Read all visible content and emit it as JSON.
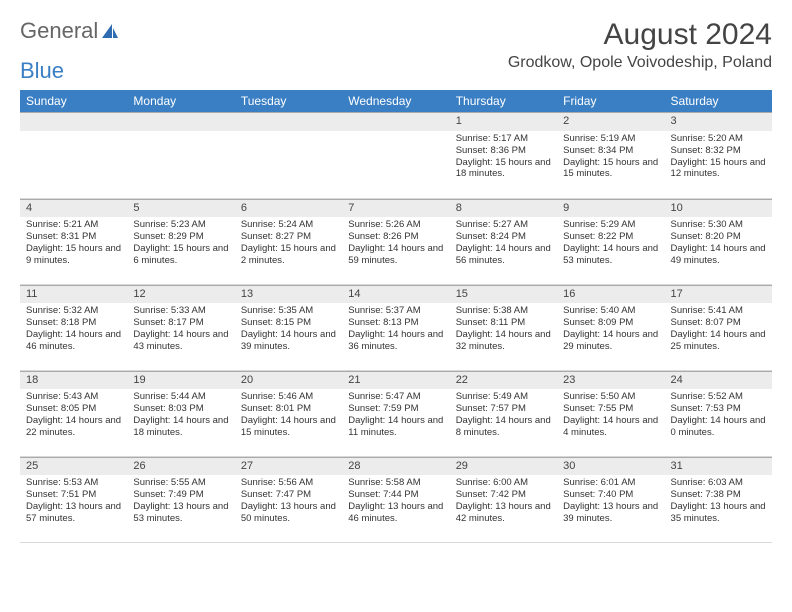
{
  "brand": {
    "part1": "General",
    "part2": "Blue"
  },
  "title": "August 2024",
  "location": "Grodkow, Opole Voivodeship, Poland",
  "colors": {
    "header_bg": "#3a7fc4",
    "header_fg": "#ffffff",
    "daynum_bg": "#ececec",
    "text": "#333333"
  },
  "weekdays": [
    "Sunday",
    "Monday",
    "Tuesday",
    "Wednesday",
    "Thursday",
    "Friday",
    "Saturday"
  ],
  "weeks": [
    [
      {
        "day": "",
        "sunrise": "",
        "sunset": "",
        "daylight": ""
      },
      {
        "day": "",
        "sunrise": "",
        "sunset": "",
        "daylight": ""
      },
      {
        "day": "",
        "sunrise": "",
        "sunset": "",
        "daylight": ""
      },
      {
        "day": "",
        "sunrise": "",
        "sunset": "",
        "daylight": ""
      },
      {
        "day": "1",
        "sunrise": "Sunrise: 5:17 AM",
        "sunset": "Sunset: 8:36 PM",
        "daylight": "Daylight: 15 hours and 18 minutes."
      },
      {
        "day": "2",
        "sunrise": "Sunrise: 5:19 AM",
        "sunset": "Sunset: 8:34 PM",
        "daylight": "Daylight: 15 hours and 15 minutes."
      },
      {
        "day": "3",
        "sunrise": "Sunrise: 5:20 AM",
        "sunset": "Sunset: 8:32 PM",
        "daylight": "Daylight: 15 hours and 12 minutes."
      }
    ],
    [
      {
        "day": "4",
        "sunrise": "Sunrise: 5:21 AM",
        "sunset": "Sunset: 8:31 PM",
        "daylight": "Daylight: 15 hours and 9 minutes."
      },
      {
        "day": "5",
        "sunrise": "Sunrise: 5:23 AM",
        "sunset": "Sunset: 8:29 PM",
        "daylight": "Daylight: 15 hours and 6 minutes."
      },
      {
        "day": "6",
        "sunrise": "Sunrise: 5:24 AM",
        "sunset": "Sunset: 8:27 PM",
        "daylight": "Daylight: 15 hours and 2 minutes."
      },
      {
        "day": "7",
        "sunrise": "Sunrise: 5:26 AM",
        "sunset": "Sunset: 8:26 PM",
        "daylight": "Daylight: 14 hours and 59 minutes."
      },
      {
        "day": "8",
        "sunrise": "Sunrise: 5:27 AM",
        "sunset": "Sunset: 8:24 PM",
        "daylight": "Daylight: 14 hours and 56 minutes."
      },
      {
        "day": "9",
        "sunrise": "Sunrise: 5:29 AM",
        "sunset": "Sunset: 8:22 PM",
        "daylight": "Daylight: 14 hours and 53 minutes."
      },
      {
        "day": "10",
        "sunrise": "Sunrise: 5:30 AM",
        "sunset": "Sunset: 8:20 PM",
        "daylight": "Daylight: 14 hours and 49 minutes."
      }
    ],
    [
      {
        "day": "11",
        "sunrise": "Sunrise: 5:32 AM",
        "sunset": "Sunset: 8:18 PM",
        "daylight": "Daylight: 14 hours and 46 minutes."
      },
      {
        "day": "12",
        "sunrise": "Sunrise: 5:33 AM",
        "sunset": "Sunset: 8:17 PM",
        "daylight": "Daylight: 14 hours and 43 minutes."
      },
      {
        "day": "13",
        "sunrise": "Sunrise: 5:35 AM",
        "sunset": "Sunset: 8:15 PM",
        "daylight": "Daylight: 14 hours and 39 minutes."
      },
      {
        "day": "14",
        "sunrise": "Sunrise: 5:37 AM",
        "sunset": "Sunset: 8:13 PM",
        "daylight": "Daylight: 14 hours and 36 minutes."
      },
      {
        "day": "15",
        "sunrise": "Sunrise: 5:38 AM",
        "sunset": "Sunset: 8:11 PM",
        "daylight": "Daylight: 14 hours and 32 minutes."
      },
      {
        "day": "16",
        "sunrise": "Sunrise: 5:40 AM",
        "sunset": "Sunset: 8:09 PM",
        "daylight": "Daylight: 14 hours and 29 minutes."
      },
      {
        "day": "17",
        "sunrise": "Sunrise: 5:41 AM",
        "sunset": "Sunset: 8:07 PM",
        "daylight": "Daylight: 14 hours and 25 minutes."
      }
    ],
    [
      {
        "day": "18",
        "sunrise": "Sunrise: 5:43 AM",
        "sunset": "Sunset: 8:05 PM",
        "daylight": "Daylight: 14 hours and 22 minutes."
      },
      {
        "day": "19",
        "sunrise": "Sunrise: 5:44 AM",
        "sunset": "Sunset: 8:03 PM",
        "daylight": "Daylight: 14 hours and 18 minutes."
      },
      {
        "day": "20",
        "sunrise": "Sunrise: 5:46 AM",
        "sunset": "Sunset: 8:01 PM",
        "daylight": "Daylight: 14 hours and 15 minutes."
      },
      {
        "day": "21",
        "sunrise": "Sunrise: 5:47 AM",
        "sunset": "Sunset: 7:59 PM",
        "daylight": "Daylight: 14 hours and 11 minutes."
      },
      {
        "day": "22",
        "sunrise": "Sunrise: 5:49 AM",
        "sunset": "Sunset: 7:57 PM",
        "daylight": "Daylight: 14 hours and 8 minutes."
      },
      {
        "day": "23",
        "sunrise": "Sunrise: 5:50 AM",
        "sunset": "Sunset: 7:55 PM",
        "daylight": "Daylight: 14 hours and 4 minutes."
      },
      {
        "day": "24",
        "sunrise": "Sunrise: 5:52 AM",
        "sunset": "Sunset: 7:53 PM",
        "daylight": "Daylight: 14 hours and 0 minutes."
      }
    ],
    [
      {
        "day": "25",
        "sunrise": "Sunrise: 5:53 AM",
        "sunset": "Sunset: 7:51 PM",
        "daylight": "Daylight: 13 hours and 57 minutes."
      },
      {
        "day": "26",
        "sunrise": "Sunrise: 5:55 AM",
        "sunset": "Sunset: 7:49 PM",
        "daylight": "Daylight: 13 hours and 53 minutes."
      },
      {
        "day": "27",
        "sunrise": "Sunrise: 5:56 AM",
        "sunset": "Sunset: 7:47 PM",
        "daylight": "Daylight: 13 hours and 50 minutes."
      },
      {
        "day": "28",
        "sunrise": "Sunrise: 5:58 AM",
        "sunset": "Sunset: 7:44 PM",
        "daylight": "Daylight: 13 hours and 46 minutes."
      },
      {
        "day": "29",
        "sunrise": "Sunrise: 6:00 AM",
        "sunset": "Sunset: 7:42 PM",
        "daylight": "Daylight: 13 hours and 42 minutes."
      },
      {
        "day": "30",
        "sunrise": "Sunrise: 6:01 AM",
        "sunset": "Sunset: 7:40 PM",
        "daylight": "Daylight: 13 hours and 39 minutes."
      },
      {
        "day": "31",
        "sunrise": "Sunrise: 6:03 AM",
        "sunset": "Sunset: 7:38 PM",
        "daylight": "Daylight: 13 hours and 35 minutes."
      }
    ]
  ]
}
